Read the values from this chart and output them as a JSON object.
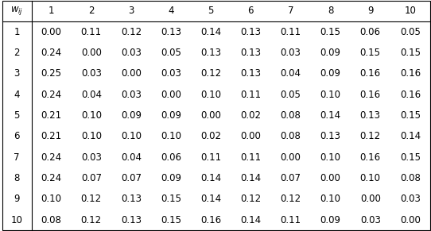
{
  "col_header": [
    "w_{ij}",
    "1",
    "2",
    "3",
    "4",
    "5",
    "6",
    "7",
    "8",
    "9",
    "10"
  ],
  "row_labels": [
    "1",
    "2",
    "3",
    "4",
    "5",
    "6",
    "7",
    "8",
    "9",
    "10"
  ],
  "table_data": [
    [
      0.0,
      0.11,
      0.12,
      0.13,
      0.14,
      0.13,
      0.11,
      0.15,
      0.06,
      0.05
    ],
    [
      0.24,
      0.0,
      0.03,
      0.05,
      0.13,
      0.13,
      0.03,
      0.09,
      0.15,
      0.15
    ],
    [
      0.25,
      0.03,
      0.0,
      0.03,
      0.12,
      0.13,
      0.04,
      0.09,
      0.16,
      0.16
    ],
    [
      0.24,
      0.04,
      0.03,
      0.0,
      0.1,
      0.11,
      0.05,
      0.1,
      0.16,
      0.16
    ],
    [
      0.21,
      0.1,
      0.09,
      0.09,
      0.0,
      0.02,
      0.08,
      0.14,
      0.13,
      0.15
    ],
    [
      0.21,
      0.1,
      0.1,
      0.1,
      0.02,
      0.0,
      0.08,
      0.13,
      0.12,
      0.14
    ],
    [
      0.24,
      0.03,
      0.04,
      0.06,
      0.11,
      0.11,
      0.0,
      0.1,
      0.16,
      0.15
    ],
    [
      0.24,
      0.07,
      0.07,
      0.09,
      0.14,
      0.14,
      0.07,
      0.0,
      0.1,
      0.08
    ],
    [
      0.1,
      0.12,
      0.13,
      0.15,
      0.14,
      0.12,
      0.12,
      0.1,
      0.0,
      0.03
    ],
    [
      0.08,
      0.12,
      0.13,
      0.15,
      0.16,
      0.14,
      0.11,
      0.09,
      0.03,
      0.0
    ]
  ],
  "bg_color": "#ffffff",
  "text_color": "#000000",
  "border_color": "#000000",
  "font_size": 8.5,
  "fig_width": 5.42,
  "fig_height": 2.91,
  "dpi": 100
}
